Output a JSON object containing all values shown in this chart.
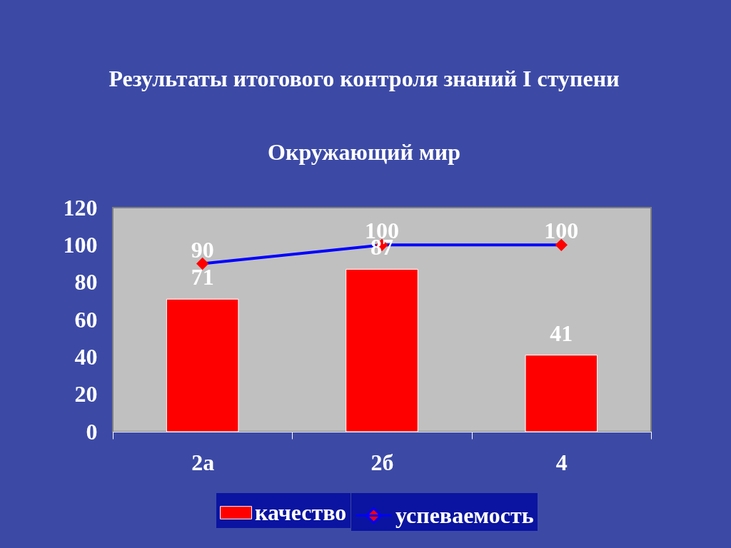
{
  "chart_data": {
    "type": "bar",
    "title": "Результаты итогового контроля знаний I ступени",
    "subtitle": "Окружающий мир",
    "categories": [
      "2а",
      "2б",
      "4"
    ],
    "series": [
      {
        "name": "качество",
        "color": "#ff0000",
        "values": [
          71,
          87,
          41
        ]
      },
      {
        "name": "успеваемость",
        "type": "line",
        "color": "#0000ff",
        "colors": [
          "#ff0000",
          "#ff0000",
          "#ff0000"
        ],
        "values": [
          90,
          100,
          100
        ]
      }
    ],
    "ylim": [
      0,
      120
    ],
    "yticks": [
      0,
      20,
      40,
      60,
      80,
      100,
      120
    ],
    "grid": false,
    "legend": "bottom",
    "marker": "diamond",
    "data_labels": true
  }
}
